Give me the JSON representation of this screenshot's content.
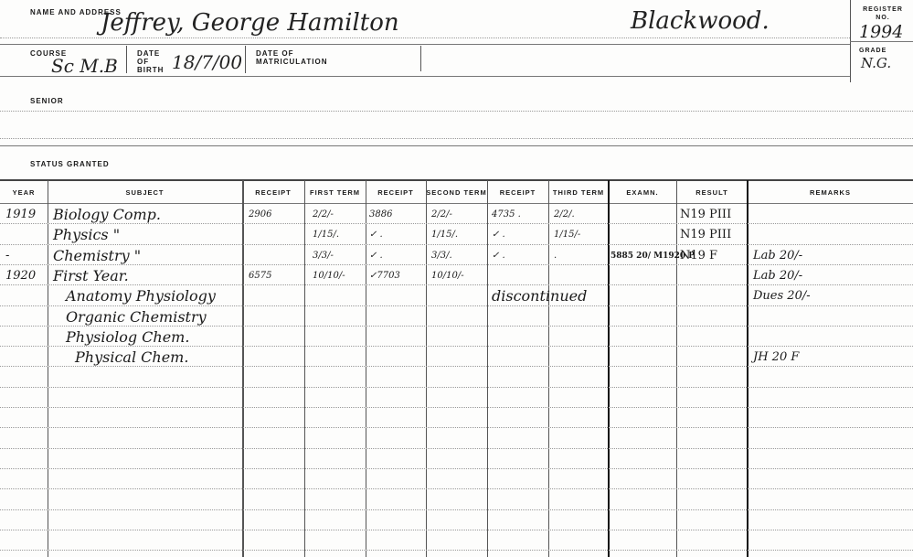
{
  "header": {
    "name_label": "NAME AND ADDRESS",
    "name_value": "Jeffrey, George Hamilton",
    "address_value": "Blackwood.",
    "register_label": "REGISTER No.",
    "register_value": "1994",
    "course_label": "COURSE",
    "course_value": "Sc M.B",
    "dob_label": "DATE OF BIRTH",
    "dob_value": "18/7/00",
    "matric_label": "DATE OF MATRICULATION",
    "grade_label": "GRADE",
    "grade_value": "N.G.",
    "senior_label": "SENIOR",
    "status_label": "STATUS GRANTED"
  },
  "table": {
    "columns": [
      "YEAR",
      "SUBJECT",
      "RECEIPT",
      "FIRST TERM",
      "RECEIPT",
      "SECOND TERM",
      "RECEIPT",
      "THIRD TERM",
      "EXAMN.",
      "RESULT",
      "REMARKS"
    ],
    "rows": [
      [
        "1919",
        "Biology       Comp.",
        "2906",
        "2/2/-",
        "3886",
        "2/2/-",
        "4735 .",
        "2/2/.",
        "",
        "N19 PIII",
        ""
      ],
      [
        "",
        "Physics         \"",
        "",
        "1/15/.",
        "✓    .",
        "1/15/.",
        "✓    .",
        "1/15/-",
        "",
        "N19 PIII",
        ""
      ],
      [
        "-",
        "Chemistry       \"",
        "",
        "3/3/-",
        "✓    .",
        "3/3/.",
        "✓    .",
        ".",
        "5885 20/ M1920 P",
        "N19 F",
        "Lab 20/-"
      ],
      [
        "1920",
        "First Year.",
        "6575",
        "10/10/-",
        "✓7703",
        "10/10/-",
        "",
        "",
        "",
        "",
        "Lab 20/-"
      ],
      [
        "",
        "Anatomy Physiology",
        "",
        "",
        "",
        "",
        "discontinued",
        "",
        "",
        "",
        "Dues 20/-"
      ],
      [
        "",
        "Organic Chemistry",
        "",
        "",
        "",
        "",
        "",
        "",
        "",
        "",
        ""
      ],
      [
        "",
        "Physiolog Chem.",
        "",
        "",
        "",
        "",
        "",
        "",
        "",
        "",
        ""
      ],
      [
        "",
        "Physical Chem.",
        "",
        "",
        "",
        "",
        "",
        "",
        "",
        "",
        "JH 20 F"
      ]
    ]
  }
}
